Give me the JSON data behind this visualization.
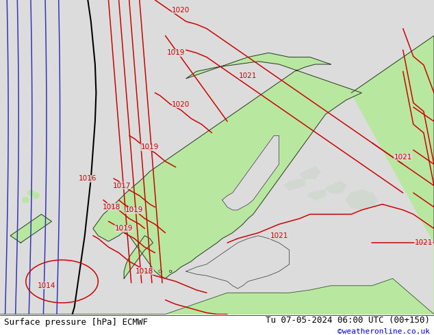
{
  "title_left": "Surface pressure [hPa] ECMWF",
  "title_right": "Tu 07-05-2024 06:00 UTC (00+150)",
  "copyright": "©weatheronline.co.uk",
  "bg_color": "#dcdcdc",
  "land_color": "#b8e8a0",
  "coast_color": "#303030",
  "isobar_red_color": "#cc0000",
  "isobar_blue_color": "#3333bb",
  "isobar_black_color": "#000000",
  "label_fontsize": 7.5,
  "footer_fontsize": 9,
  "copyright_fontsize": 8,
  "copyright_color": "#0000cc",
  "figsize": [
    6.34,
    4.9
  ],
  "dpi": 100
}
